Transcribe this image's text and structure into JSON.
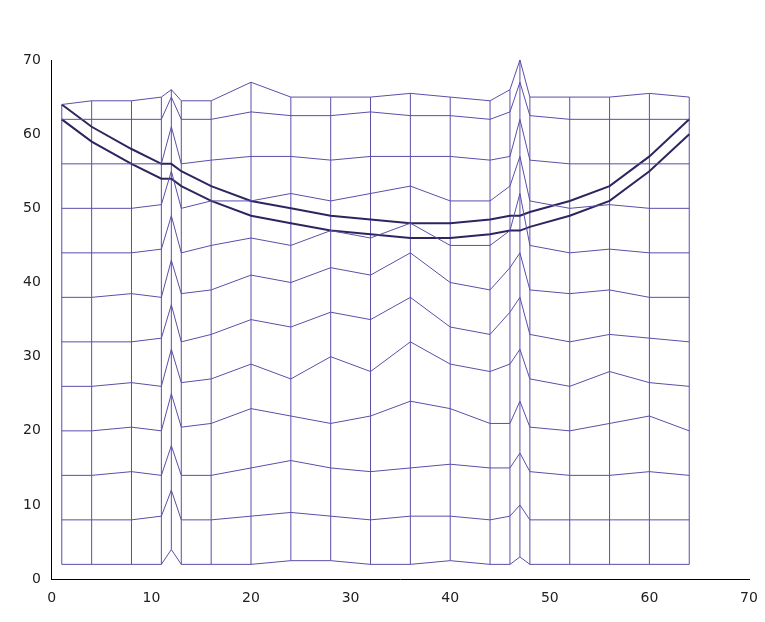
{
  "chart_data": {
    "type": "line",
    "x": [
      1,
      4,
      8,
      11,
      12,
      13,
      16,
      20,
      24,
      28,
      32,
      36,
      40,
      44,
      46,
      47,
      48,
      52,
      56,
      60,
      64
    ],
    "color": "#5b4ea8",
    "marker": "none",
    "series": [
      {
        "values": [
          2,
          2,
          2,
          2,
          4,
          2,
          2,
          2,
          2.5,
          2.5,
          2,
          2,
          2.5,
          2,
          2,
          3,
          2,
          2,
          2,
          2,
          2
        ]
      },
      {
        "values": [
          8,
          8,
          8,
          8.5,
          12,
          8,
          8,
          8.5,
          9,
          8.5,
          8,
          8.5,
          8.5,
          8,
          8.5,
          10,
          8,
          8,
          8,
          8,
          8
        ]
      },
      {
        "values": [
          14,
          14,
          14.5,
          14,
          18,
          14,
          14,
          15,
          16,
          15,
          14.5,
          15,
          15.5,
          15,
          15,
          17,
          14.5,
          14,
          14,
          14.5,
          14
        ]
      },
      {
        "values": [
          20,
          20,
          20.5,
          20,
          25,
          20.5,
          21,
          23,
          22,
          21,
          22,
          24,
          23,
          21,
          21,
          24,
          20.5,
          20,
          21,
          22,
          20
        ]
      },
      {
        "values": [
          26,
          26,
          26.5,
          26,
          31,
          26.5,
          27,
          29,
          27,
          30,
          28,
          32,
          29,
          28,
          29,
          31,
          27,
          26,
          28,
          26.5,
          26
        ]
      },
      {
        "values": [
          32,
          32,
          32,
          32.5,
          37,
          32,
          33,
          35,
          34,
          36,
          35,
          38,
          34,
          33,
          36,
          38,
          33,
          32,
          33,
          32.5,
          32
        ]
      },
      {
        "values": [
          38,
          38,
          38.5,
          38,
          43,
          38.5,
          39,
          41,
          40,
          42,
          41,
          44,
          40,
          39,
          42,
          44,
          39,
          38.5,
          39,
          38,
          38
        ]
      },
      {
        "values": [
          44,
          44,
          44,
          44.5,
          49,
          44,
          45,
          46,
          45,
          47,
          46,
          48,
          45,
          45,
          47,
          52,
          45,
          44,
          44.5,
          44,
          44
        ]
      },
      {
        "values": [
          50,
          50,
          50,
          50.5,
          55,
          50,
          51,
          51,
          52,
          51,
          52,
          53,
          51,
          51,
          53,
          57,
          51,
          50,
          50.5,
          50,
          50
        ]
      },
      {
        "values": [
          56,
          56,
          56,
          56,
          61,
          56,
          56.5,
          57,
          57,
          56.5,
          57,
          57,
          57,
          56.5,
          57,
          62,
          56.5,
          56,
          56,
          56,
          56
        ]
      },
      {
        "values": [
          62,
          62,
          62,
          62,
          65,
          62,
          62,
          63,
          62.5,
          62.5,
          63,
          62.5,
          62.5,
          62,
          63,
          67,
          62.5,
          62,
          62,
          62,
          62
        ]
      },
      {
        "values": [
          64,
          64.5,
          64.5,
          65,
          66,
          64.5,
          64.5,
          67,
          65,
          65,
          65,
          65.5,
          65,
          64.5,
          66,
          70,
          65,
          65,
          65,
          65.5,
          65
        ]
      },
      {
        "color": "#2b2660",
        "values": [
          64,
          61,
          58,
          56,
          56,
          55,
          53,
          51,
          50,
          49,
          48.5,
          48,
          48,
          48.5,
          49,
          49,
          49.5,
          51,
          53,
          57,
          62
        ]
      },
      {
        "color": "#2b2660",
        "values": [
          62,
          59,
          56,
          54,
          54,
          53,
          51,
          49,
          48,
          47,
          46.5,
          46,
          46,
          46.5,
          47,
          47,
          47.5,
          49,
          51,
          55,
          60
        ]
      }
    ],
    "xlim": [
      0,
      70
    ],
    "ylim": [
      0,
      70
    ],
    "xticks": [
      0,
      10,
      20,
      30,
      40,
      50,
      60,
      70
    ],
    "yticks": [
      0,
      10,
      20,
      30,
      40,
      50,
      60,
      70
    ],
    "grid": false
  }
}
